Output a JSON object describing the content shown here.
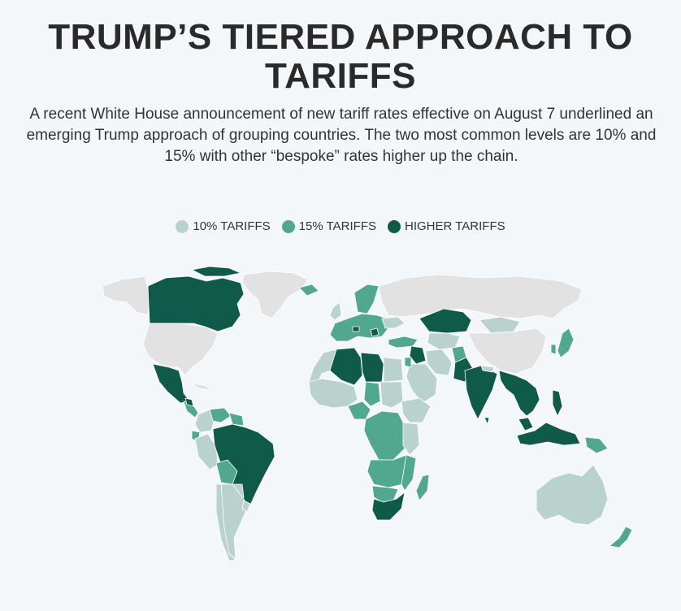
{
  "header": {
    "title": "TRUMP’S TIERED APPROACH TO TARIFFS",
    "subtitle": "A recent White House announcement of new tariff rates effective on August 7 underlined an emerging Trump approach of grouping countries. The two most common levels are 10% and 15% with other “bespoke” rates higher up the chain."
  },
  "legend": [
    {
      "label": "10% TARIFFS",
      "color": "#b9d2cc"
    },
    {
      "label": "15% TARIFFS",
      "color": "#52a88e"
    },
    {
      "label": "HIGHER TARIFFS",
      "color": "#0f5a48"
    }
  ],
  "colors": {
    "background": "#f4f7fa",
    "no_data": "#e2e2e2",
    "border": "#ffffff"
  },
  "tiers": {
    "higher": [
      "Canada",
      "Mexico",
      "Brazil",
      "Algeria",
      "Libya",
      "Iraq",
      "Kazakhstan",
      "India",
      "Pakistan",
      "Myanmar",
      "Laos",
      "Thailand",
      "Vietnam",
      "Cambodia",
      "Malaysia",
      "Indonesia",
      "Philippines",
      "South Africa",
      "Switzerland",
      "Serbia",
      "Syria",
      "Bangladesh",
      "Sri Lanka",
      "Bosnia",
      "Moldova",
      "Brunei",
      "Nicaragua"
    ],
    "fifteen": [
      "European Union",
      "Japan",
      "South Korea",
      "Turkey",
      "Israel",
      "Jordan",
      "Afghanistan",
      "Norway",
      "Iceland",
      "Venezuela",
      "Bolivia",
      "Ecuador",
      "Nigeria",
      "Ghana",
      "Cameroon",
      "Chad",
      "Angola",
      "Zambia",
      "Zimbabwe",
      "Namibia",
      "Botswana",
      "Mozambique",
      "Malawi",
      "Madagascar",
      "Uganda",
      "DR Congo",
      "Lesotho",
      "Papua New Guinea",
      "New Zealand",
      "Fiji",
      "Mauritius",
      "Costa Rica",
      "Guyana"
    ],
    "ten": [
      "Australia",
      "Argentina",
      "Chile",
      "Peru",
      "Colombia",
      "Uruguay",
      "Paraguay",
      "Saudi Arabia",
      "Egypt",
      "Morocco",
      "Sudan",
      "Ethiopia",
      "Kenya",
      "Tanzania",
      "Mali",
      "Niger",
      "Mauritania",
      "Senegal",
      "Iran",
      "Turkmenistan",
      "Uzbekistan",
      "Mongolia",
      "Nepal",
      "Yemen",
      "Oman",
      "Somalia",
      "United Kingdom",
      "Ukraine"
    ]
  }
}
